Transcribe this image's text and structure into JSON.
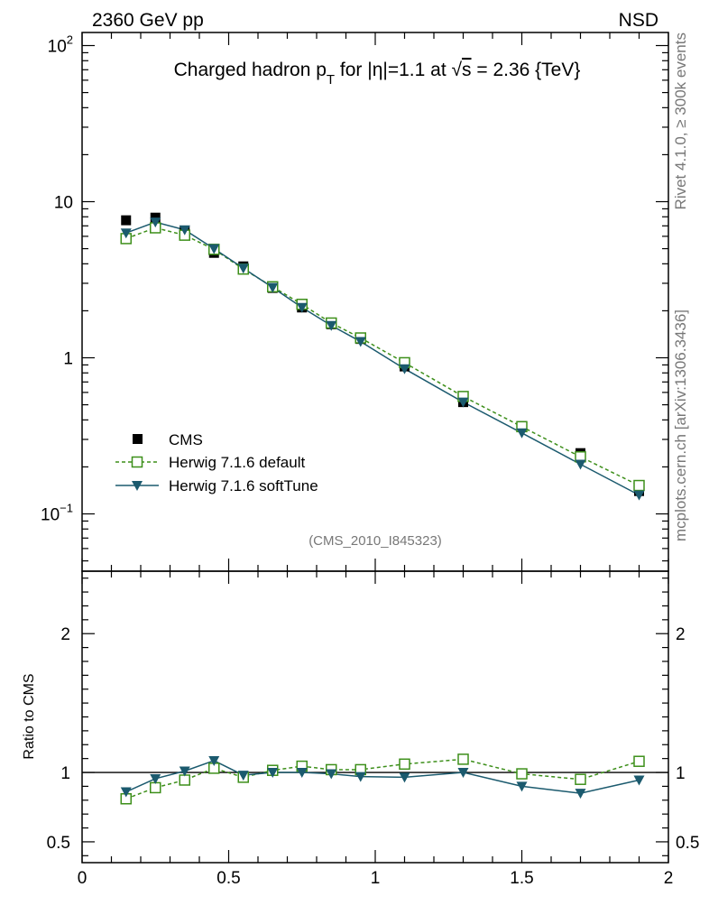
{
  "header": {
    "left": "2360 GeV pp",
    "right": "NSD"
  },
  "side": {
    "rivet": "Rivet 4.1.0, ≥ 300k events",
    "mcplots": "mcplots.cern.ch [arXiv:1306.3436]"
  },
  "chart_data": {
    "type": "scatter",
    "title": "Charged hadron p_T for |η|=1.1 at √s = 2.36 {TeV}",
    "title_parts": {
      "pre": "Charged hadron p",
      "sub": "T",
      "mid": " for |η|=1.1 at ",
      "sqrt": "√",
      "s": "s",
      "post": " = 2.36 {TeV}"
    },
    "analysis_id": "(CMS_2010_I845323)",
    "xlim": [
      0,
      2
    ],
    "ylim": [
      0.045,
      120
    ],
    "yscale": "log",
    "x_ticks": [
      "0",
      "0.5",
      "1",
      "1.5",
      "2"
    ],
    "x_tick_values": [
      0,
      0.5,
      1,
      1.5,
      2
    ],
    "y_ticks": [
      {
        "value": 100,
        "base": "10",
        "exp": "2"
      },
      {
        "value": 10,
        "base": "10",
        "exp": ""
      },
      {
        "value": 1,
        "base": "1",
        "exp": ""
      },
      {
        "value": 0.1,
        "base": "10",
        "exp": "−1"
      }
    ],
    "x": [
      0.15,
      0.25,
      0.35,
      0.45,
      0.55,
      0.65,
      0.75,
      0.85,
      0.95,
      1.1,
      1.3,
      1.5,
      1.7,
      1.9
    ],
    "series": [
      {
        "name": "CMS",
        "style": "data",
        "color": "#000000",
        "values": [
          7.6,
          7.9,
          6.5,
          4.7,
          3.85,
          2.8,
          2.1,
          1.64,
          1.32,
          0.88,
          0.52,
          0.365,
          0.245,
          0.14
        ]
      },
      {
        "name": "Herwig 7.1.6 default",
        "style": "dashed-open-square",
        "color": "#3d8f1a",
        "values": [
          5.8,
          6.8,
          6.1,
          4.95,
          3.7,
          2.85,
          2.2,
          1.67,
          1.34,
          0.93,
          0.565,
          0.362,
          0.232,
          0.152
        ]
      },
      {
        "name": "Herwig 7.1.6 softTune",
        "style": "solid-down-triangle",
        "color": "#1b5a6e",
        "values": [
          6.3,
          7.4,
          6.6,
          5.0,
          3.75,
          2.82,
          2.1,
          1.61,
          1.27,
          0.85,
          0.52,
          0.33,
          0.208,
          0.132
        ]
      }
    ],
    "ratio": {
      "ylabel": "Ratio to CMS",
      "ylim": [
        0.35,
        2.45
      ],
      "y_ticks": [
        "0.5",
        "1",
        "2"
      ],
      "y_tick_values": [
        0.5,
        1,
        2
      ],
      "series": [
        {
          "name": "Herwig 7.1.6 default",
          "values": [
            0.81,
            0.89,
            0.945,
            1.03,
            0.965,
            1.015,
            1.045,
            1.02,
            1.02,
            1.06,
            1.095,
            0.99,
            0.95,
            1.08
          ]
        },
        {
          "name": "Herwig 7.1.6 softTune",
          "values": [
            0.86,
            0.955,
            1.01,
            1.085,
            0.98,
            1.0,
            1.0,
            0.99,
            0.97,
            0.965,
            1.0,
            0.9,
            0.85,
            0.945
          ]
        }
      ]
    }
  }
}
